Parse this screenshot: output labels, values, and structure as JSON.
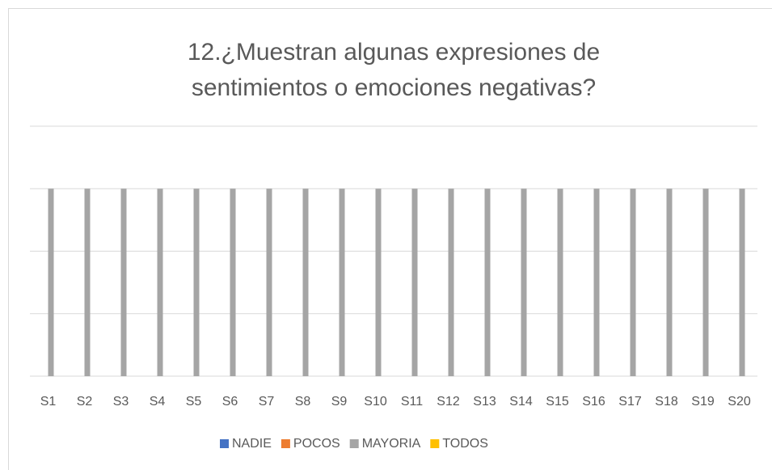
{
  "chart_data": {
    "type": "bar",
    "title": [
      "12.¿Muestran algunas expresiones de",
      "sentimientos o emociones negativas?"
    ],
    "categories": [
      "S1",
      "S2",
      "S3",
      "S4",
      "S5",
      "S6",
      "S7",
      "S8",
      "S9",
      "S10",
      "S11",
      "S12",
      "S13",
      "S14",
      "S15",
      "S16",
      "S17",
      "S18",
      "S19",
      "S20"
    ],
    "series": [
      {
        "name": "NADIE",
        "color": "#4472c4",
        "values": [
          0,
          0,
          0,
          0,
          0,
          0,
          0,
          0,
          0,
          0,
          0,
          0,
          0,
          0,
          0,
          0,
          0,
          0,
          0,
          0
        ]
      },
      {
        "name": "POCOS",
        "color": "#ed7d31",
        "values": [
          0,
          0,
          0,
          0,
          0,
          0,
          0,
          0,
          0,
          0,
          0,
          0,
          0,
          0,
          0,
          0,
          0,
          0,
          0,
          0
        ]
      },
      {
        "name": "MAYORIA",
        "color": "#a5a5a5",
        "values": [
          3,
          3,
          3,
          3,
          3,
          3,
          3,
          3,
          3,
          3,
          3,
          3,
          3,
          3,
          3,
          3,
          3,
          3,
          3,
          3
        ]
      },
      {
        "name": "TODOS",
        "color": "#ffc000",
        "values": [
          0,
          0,
          0,
          0,
          0,
          0,
          0,
          0,
          0,
          0,
          0,
          0,
          0,
          0,
          0,
          0,
          0,
          0,
          0,
          0
        ]
      }
    ],
    "ylim": [
      0,
      4
    ],
    "yticks": [
      0,
      1,
      2,
      3,
      4
    ],
    "grid": true,
    "legend": "bottom"
  }
}
